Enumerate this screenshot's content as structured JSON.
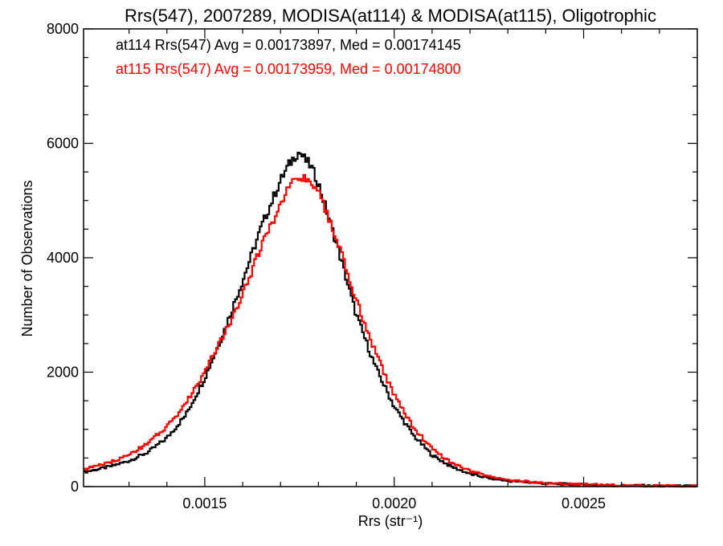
{
  "chart_data": {
    "type": "line",
    "title": "Rrs(547), 2007289, MODISA(at114) & MODISA(at115), Oligotrophic",
    "xlabel": "Rrs (str⁻¹)",
    "ylabel": "Number of Observations",
    "xlim": [
      0.00118,
      0.0028
    ],
    "ylim": [
      0,
      8000
    ],
    "x_ticks": {
      "major": [
        0.0015,
        0.002,
        0.0025
      ],
      "major_labels": [
        "0.0015",
        "0.0020",
        "0.0025"
      ],
      "minor": [
        0.0013,
        0.0014,
        0.0016,
        0.0017,
        0.0018,
        0.0019,
        0.0021,
        0.0022,
        0.0023,
        0.0024,
        0.0026,
        0.0027
      ]
    },
    "y_ticks": {
      "major": [
        0,
        2000,
        4000,
        6000,
        8000
      ],
      "major_labels": [
        "0",
        "2000",
        "4000",
        "6000",
        "8000"
      ],
      "minor": [
        500,
        1000,
        1500,
        2500,
        3000,
        3500,
        4500,
        5000,
        5500,
        6500,
        7000,
        7500
      ]
    },
    "legend_position": "top-left",
    "grid": false,
    "bin_width": 5e-06,
    "series": [
      {
        "name": "at114",
        "color": "#000000",
        "stat_text": "at114 Rrs(547) Avg = 0.00173897, Med = 0.00174145",
        "points": [
          [
            0.00118,
            250
          ],
          [
            0.00125,
            350
          ],
          [
            0.0013,
            450
          ],
          [
            0.00135,
            600
          ],
          [
            0.0014,
            850
          ],
          [
            0.00145,
            1250
          ],
          [
            0.0015,
            1900
          ],
          [
            0.00155,
            2700
          ],
          [
            0.0016,
            3600
          ],
          [
            0.00165,
            4550
          ],
          [
            0.0017,
            5350
          ],
          [
            0.00172,
            5600
          ],
          [
            0.00174,
            5800
          ],
          [
            0.00175,
            5850
          ],
          [
            0.00176,
            5750
          ],
          [
            0.00178,
            5600
          ],
          [
            0.0018,
            5300
          ],
          [
            0.00185,
            4200
          ],
          [
            0.0019,
            3000
          ],
          [
            0.00195,
            2100
          ],
          [
            0.002,
            1400
          ],
          [
            0.00205,
            900
          ],
          [
            0.0021,
            550
          ],
          [
            0.00215,
            350
          ],
          [
            0.0022,
            220
          ],
          [
            0.00225,
            150
          ],
          [
            0.0023,
            100
          ],
          [
            0.0024,
            55
          ],
          [
            0.0025,
            30
          ],
          [
            0.0026,
            18
          ],
          [
            0.0027,
            10
          ],
          [
            0.0028,
            5
          ]
        ]
      },
      {
        "name": "at115",
        "color": "#ff0000",
        "stat_text": "at115 Rrs(547) Avg = 0.00173959, Med = 0.00174800",
        "points": [
          [
            0.00118,
            300
          ],
          [
            0.00125,
            420
          ],
          [
            0.0013,
            560
          ],
          [
            0.00135,
            750
          ],
          [
            0.0014,
            1050
          ],
          [
            0.00145,
            1450
          ],
          [
            0.0015,
            2000
          ],
          [
            0.00155,
            2650
          ],
          [
            0.0016,
            3350
          ],
          [
            0.00165,
            4200
          ],
          [
            0.0017,
            4950
          ],
          [
            0.00172,
            5200
          ],
          [
            0.00174,
            5350
          ],
          [
            0.00176,
            5400
          ],
          [
            0.00178,
            5350
          ],
          [
            0.0018,
            5150
          ],
          [
            0.00185,
            4300
          ],
          [
            0.0019,
            3250
          ],
          [
            0.00195,
            2350
          ],
          [
            0.002,
            1600
          ],
          [
            0.00205,
            1050
          ],
          [
            0.0021,
            650
          ],
          [
            0.00215,
            420
          ],
          [
            0.0022,
            270
          ],
          [
            0.00225,
            180
          ],
          [
            0.0023,
            120
          ],
          [
            0.0024,
            60
          ],
          [
            0.0025,
            35
          ],
          [
            0.0026,
            20
          ],
          [
            0.0027,
            12
          ],
          [
            0.0028,
            6
          ]
        ]
      }
    ]
  }
}
